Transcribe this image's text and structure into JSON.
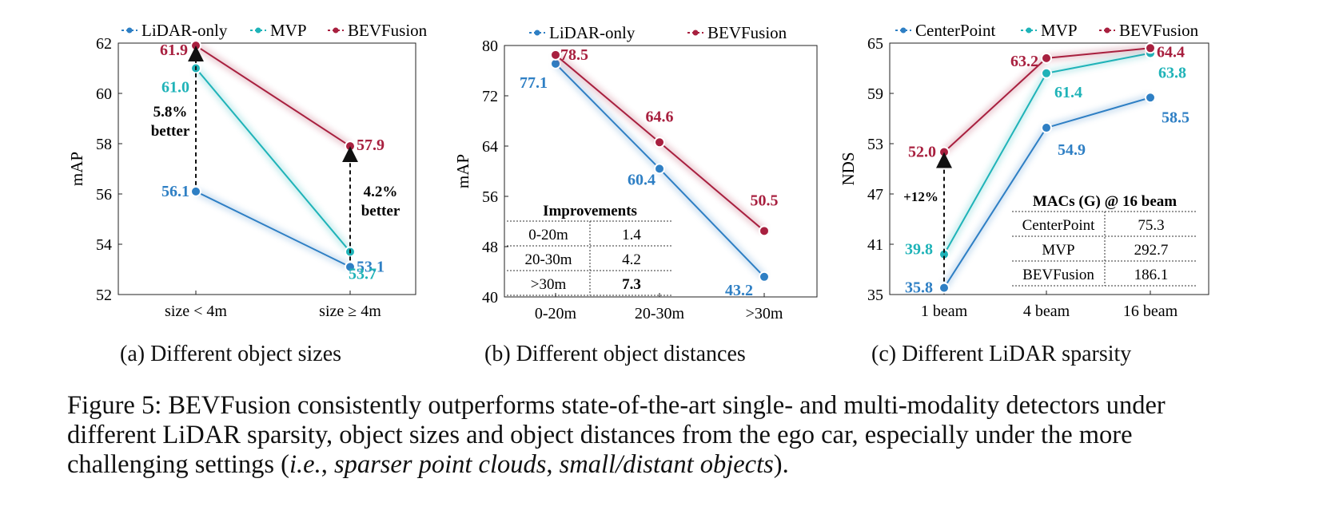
{
  "chart_data": [
    {
      "type": "line",
      "panel": "a",
      "ylabel": "mAP",
      "ylim": [
        52,
        62
      ],
      "yticks": [
        52,
        54,
        56,
        58,
        60,
        62
      ],
      "categories": [
        "size < 4m",
        "size ≥ 4m"
      ],
      "legend": "top",
      "series": [
        {
          "name": "LiDAR-only",
          "color": "#2e7fc4",
          "values": [
            56.1,
            53.1
          ],
          "labels": [
            "56.1",
            "53.1"
          ]
        },
        {
          "name": "MVP",
          "color": "#1fb3b8",
          "values": [
            61.0,
            53.7
          ],
          "labels": [
            "61.0",
            "53.7"
          ]
        },
        {
          "name": "BEVFusion",
          "color": "#a8203f",
          "values": [
            61.9,
            57.9
          ],
          "labels": [
            "61.9",
            "57.9"
          ]
        }
      ],
      "annotations": [
        {
          "line1": "5.8%",
          "line2": "better"
        },
        {
          "line1": "4.2%",
          "line2": "better"
        }
      ]
    },
    {
      "type": "line",
      "panel": "b",
      "ylabel": "mAP",
      "ylim": [
        40,
        80
      ],
      "yticks": [
        40,
        48,
        56,
        64,
        72,
        80
      ],
      "categories": [
        "0-20m",
        "20-30m",
        ">30m"
      ],
      "legend": "top",
      "series": [
        {
          "name": "LiDAR-only",
          "color": "#2e7fc4",
          "values": [
            77.1,
            60.4,
            43.2
          ],
          "labels": [
            "77.1",
            "60.4",
            "43.2"
          ]
        },
        {
          "name": "BEVFusion",
          "color": "#a8203f",
          "values": [
            78.5,
            64.6,
            50.5
          ],
          "labels": [
            "78.5",
            "64.6",
            "50.5"
          ]
        }
      ],
      "table": {
        "title": "Improvements",
        "rows": [
          [
            "0-20m",
            "1.4"
          ],
          [
            "20-30m",
            "4.2"
          ],
          [
            ">30m",
            "7.3"
          ]
        ]
      }
    },
    {
      "type": "line",
      "panel": "c",
      "ylabel": "NDS",
      "ylim": [
        35,
        65
      ],
      "yticks": [
        35,
        41,
        47,
        53,
        59,
        65
      ],
      "categories": [
        "1 beam",
        "4 beam",
        "16 beam"
      ],
      "legend": "top",
      "series": [
        {
          "name": "CenterPoint",
          "color": "#2e7fc4",
          "values": [
            35.8,
            54.9,
            58.5
          ],
          "labels": [
            "35.8",
            "54.9",
            "58.5"
          ]
        },
        {
          "name": "MVP",
          "color": "#1fb3b8",
          "values": [
            39.8,
            61.4,
            63.8
          ],
          "labels": [
            "39.8",
            "61.4",
            "63.8"
          ]
        },
        {
          "name": "BEVFusion",
          "color": "#a8203f",
          "values": [
            52.0,
            63.2,
            64.4
          ],
          "labels": [
            "52.0",
            "63.2",
            "64.4"
          ]
        }
      ],
      "annotations": [
        {
          "line1": "+12%"
        }
      ],
      "table": {
        "title": "MACs (G) @ 16 beam",
        "rows": [
          [
            "CenterPoint",
            "75.3"
          ],
          [
            "MVP",
            "292.7"
          ],
          [
            "BEVFusion",
            "186.1"
          ]
        ]
      }
    }
  ],
  "subcaptions": [
    "(a) Different object sizes",
    "(b) Different object distances",
    "(c) Different LiDAR sparsity"
  ],
  "caption": {
    "main": "Figure 5: BEVFusion consistently outperforms state-of-the-art single- and multi-modality detectors under different LiDAR sparsity, object sizes and object distances from the ego car, especially under the more challenging settings (",
    "ie": "i.e.",
    "comma1": ", ",
    "it1": "sparser point clouds",
    "comma2": ", ",
    "it2": "small/distant objects",
    "end": ")."
  }
}
